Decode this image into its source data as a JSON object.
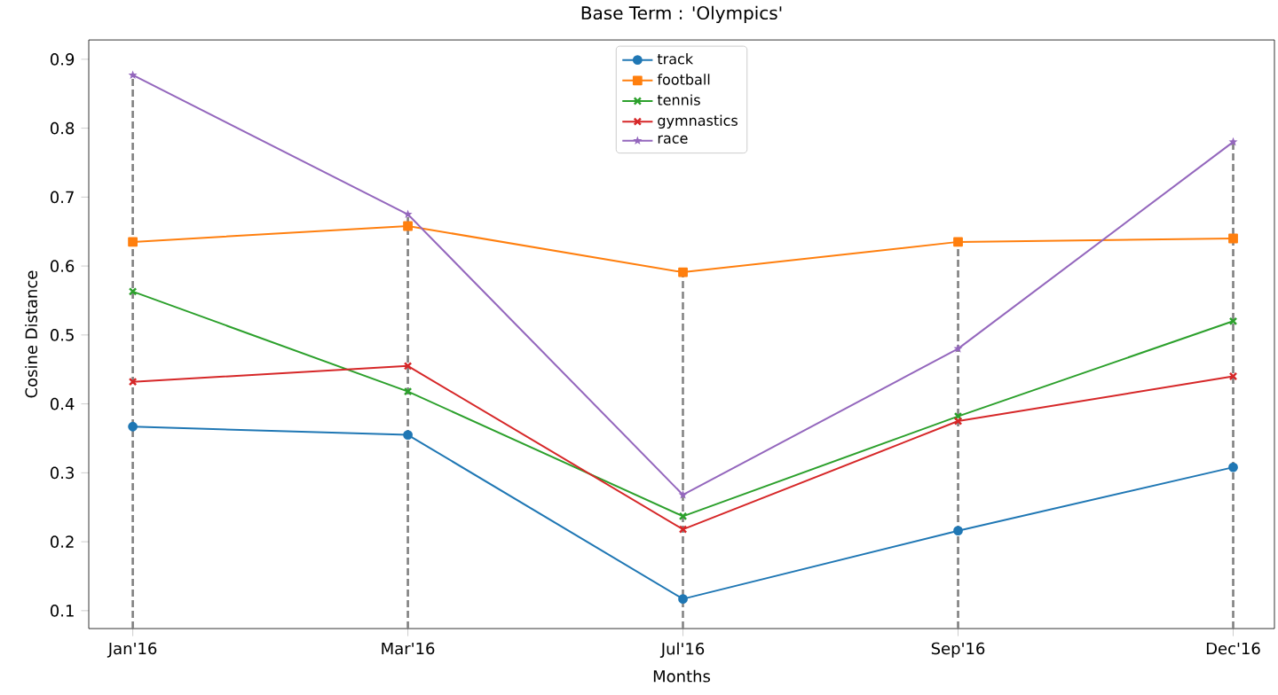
{
  "chart_data": {
    "type": "line",
    "title": "Base Term : 'Olympics'",
    "xlabel": "Months",
    "ylabel": "Cosine Distance",
    "categories": [
      "Jan'16",
      "Mar'16",
      "Jul'16",
      "Sep'16",
      "Dec'16"
    ],
    "series": [
      {
        "name": "track",
        "color": "#1f77b4",
        "marker": "circle",
        "values": [
          0.367,
          0.355,
          0.117,
          0.216,
          0.308
        ]
      },
      {
        "name": "football",
        "color": "#ff7f0e",
        "marker": "square",
        "values": [
          0.635,
          0.658,
          0.591,
          0.635,
          0.64
        ]
      },
      {
        "name": "tennis",
        "color": "#2ca02c",
        "marker": "cross",
        "values": [
          0.563,
          0.418,
          0.237,
          0.382,
          0.52
        ]
      },
      {
        "name": "gymnastics",
        "color": "#d62728",
        "marker": "cross",
        "values": [
          0.432,
          0.455,
          0.218,
          0.375,
          0.44
        ]
      },
      {
        "name": "race",
        "color": "#9467bd",
        "marker": "star",
        "values": [
          0.877,
          0.675,
          0.268,
          0.48,
          0.78
        ]
      }
    ],
    "ylim": [
      0.074,
      0.928
    ],
    "yticks": [
      0.1,
      0.2,
      0.3,
      0.4,
      0.5,
      0.6,
      0.7,
      0.8,
      0.9
    ],
    "ref_lines": [
      {
        "axis": "x",
        "value": "Jan'16",
        "color": "#808080",
        "line_style": "dashed"
      },
      {
        "axis": "x",
        "value": "Mar'16",
        "color": "#808080",
        "line_style": "dashed"
      },
      {
        "axis": "x",
        "value": "Jul'16",
        "color": "#808080",
        "line_style": "dashed"
      },
      {
        "axis": "x",
        "value": "Sep'16",
        "color": "#808080",
        "line_style": "dashed"
      },
      {
        "axis": "x",
        "value": "Dec'16",
        "color": "#808080",
        "line_style": "dashed"
      }
    ],
    "legend": "top",
    "grid": false
  }
}
